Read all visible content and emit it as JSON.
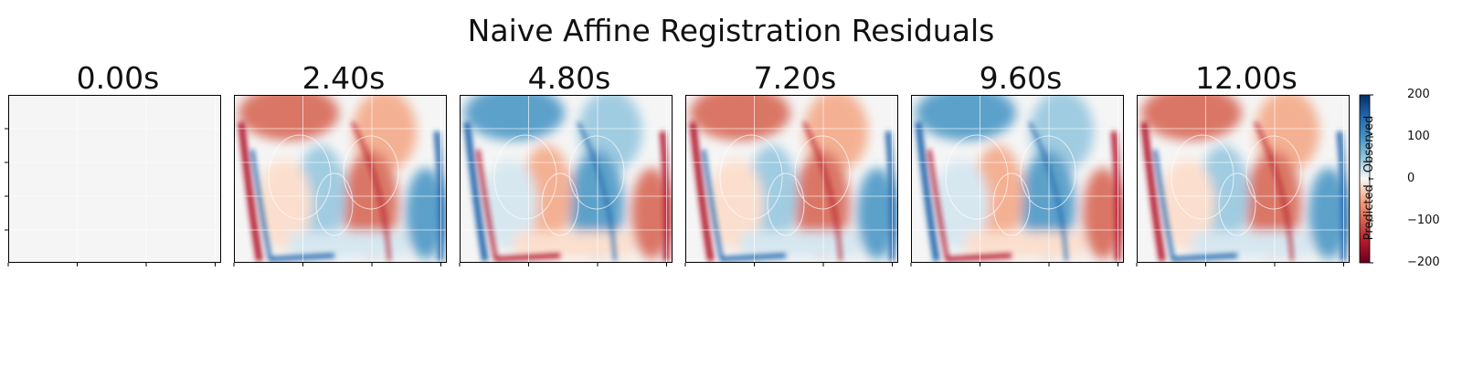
{
  "chart_data": {
    "type": "heatmap",
    "title": "Naive Affine Registration Residuals",
    "panels": [
      {
        "label": "0.00s",
        "pattern": "zero"
      },
      {
        "label": "2.40s",
        "pattern": "red-dominant"
      },
      {
        "label": "4.80s",
        "pattern": "blue-dominant"
      },
      {
        "label": "7.20s",
        "pattern": "red-dominant"
      },
      {
        "label": "9.60s",
        "pattern": "blue-dominant"
      },
      {
        "label": "12.00s",
        "pattern": "red-dominant"
      }
    ],
    "colorbar": {
      "label": "Predicted - Observed",
      "colormap": "RdBu",
      "range": [
        -200,
        200
      ],
      "ticks": [
        "200",
        "100",
        "0",
        "−100",
        "−200"
      ]
    },
    "grid": true,
    "axis_tick_labels": false
  }
}
